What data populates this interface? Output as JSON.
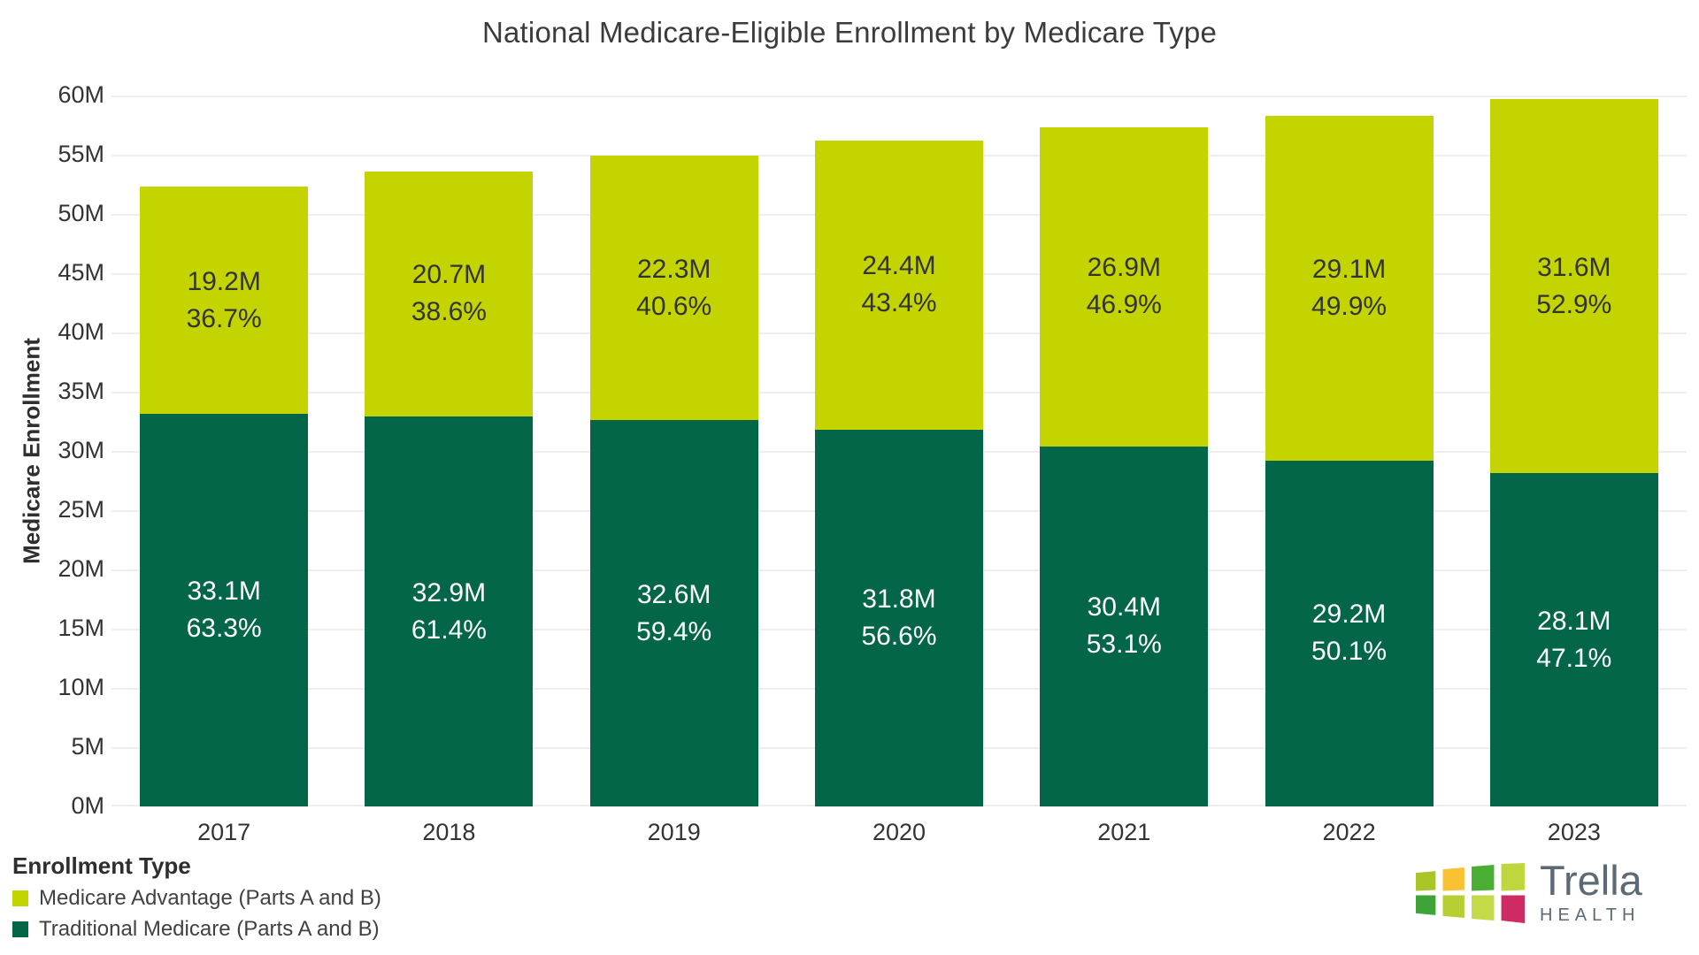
{
  "title": "National Medicare-Eligible Enrollment by Medicare Type",
  "chart_data": {
    "type": "bar",
    "stacked": true,
    "title": "National Medicare-Eligible Enrollment by Medicare Type",
    "xlabel": "",
    "ylabel": "Medicare Enrollment",
    "ylim": [
      0,
      60
    ],
    "yticks": [
      0,
      5,
      10,
      15,
      20,
      25,
      30,
      35,
      40,
      45,
      50,
      55,
      60
    ],
    "ytick_labels": [
      "0M",
      "5M",
      "10M",
      "15M",
      "20M",
      "25M",
      "30M",
      "35M",
      "40M",
      "45M",
      "50M",
      "55M",
      "60M"
    ],
    "grid": true,
    "legend_position": "bottom-left",
    "categories": [
      "2017",
      "2018",
      "2019",
      "2020",
      "2021",
      "2022",
      "2023"
    ],
    "series": [
      {
        "name": "Medicare Advantage (Parts A and B)",
        "stack": "top",
        "color": "#c3d400",
        "label_color": "#333333",
        "values": [
          19.2,
          20.7,
          22.3,
          24.4,
          26.9,
          29.1,
          31.6
        ],
        "value_labels": [
          "19.2M",
          "20.7M",
          "22.3M",
          "24.4M",
          "26.9M",
          "29.1M",
          "31.6M"
        ],
        "pct_labels": [
          "36.7%",
          "38.6%",
          "40.6%",
          "43.4%",
          "46.9%",
          "49.9%",
          "52.9%"
        ]
      },
      {
        "name": "Traditional Medicare (Parts A and B)",
        "stack": "bottom",
        "color": "#046648",
        "label_color": "#ffffff",
        "values": [
          33.1,
          32.9,
          32.6,
          31.8,
          30.4,
          29.2,
          28.1
        ],
        "value_labels": [
          "33.1M",
          "32.9M",
          "32.6M",
          "31.8M",
          "30.4M",
          "29.2M",
          "28.1M"
        ],
        "pct_labels": [
          "63.3%",
          "61.4%",
          "59.4%",
          "56.6%",
          "53.1%",
          "50.1%",
          "47.1%"
        ]
      }
    ]
  },
  "legend": {
    "title": "Enrollment Type"
  },
  "logo": {
    "brand": "Trella",
    "division": "HEALTH",
    "text_color": "#5b6a74",
    "tiles": [
      "#a9c526",
      "#f8c233",
      "#4aae33",
      "#bfd73c",
      "#3fa437",
      "#b8cf33",
      "#c6da47",
      "#ce2a63"
    ]
  }
}
